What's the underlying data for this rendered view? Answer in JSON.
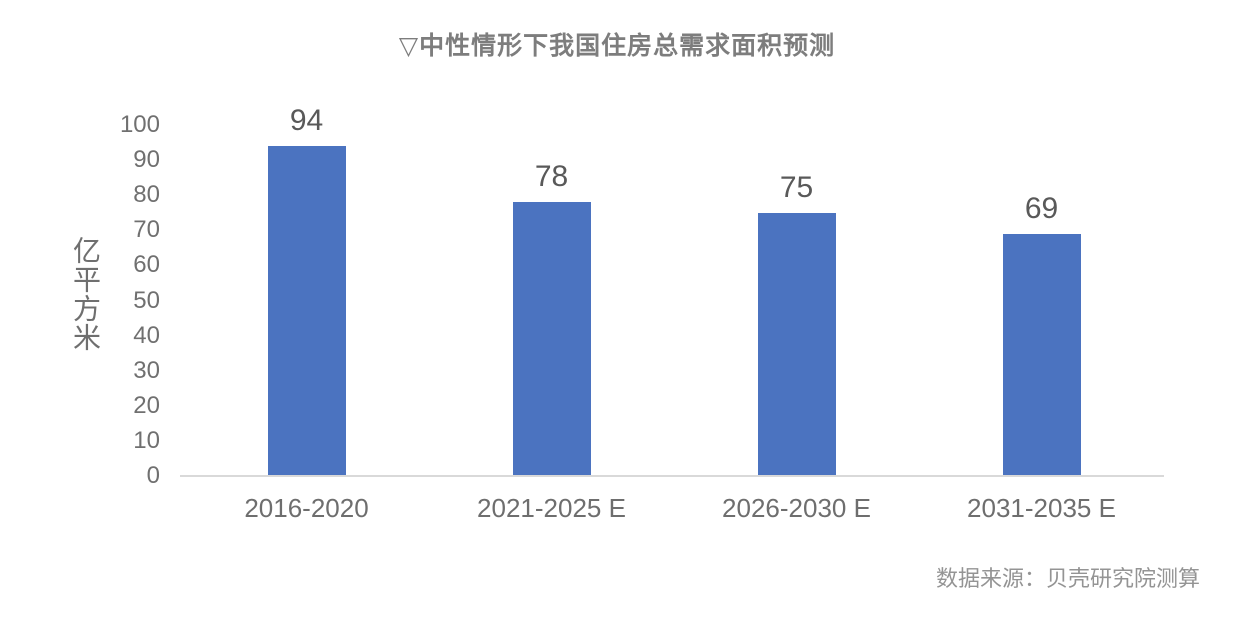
{
  "page": {
    "background_color": "#ffffff"
  },
  "chart_data": {
    "type": "bar",
    "title": "▽中性情形下我国住房总需求面积预测",
    "title_marker": "down-triangle",
    "categories": [
      "2016-2020",
      "2021-2025 E",
      "2026-2030 E",
      "2031-2035 E"
    ],
    "values": [
      94,
      78,
      75,
      69
    ],
    "xlabel": "",
    "ylabel": "亿平方米",
    "ylim": [
      0,
      100
    ],
    "yticks": [
      0,
      10,
      20,
      30,
      40,
      50,
      60,
      70,
      80,
      90,
      100
    ],
    "grid": false,
    "legend": "none",
    "data_labels_shown": true,
    "colors": {
      "bar": "#4b73c0",
      "title": "#7d7d7d",
      "data_label": "#595959",
      "axis_tick_label": "#707070",
      "category_label": "#6e6e6e",
      "axis_line": "#d9d9d9"
    }
  },
  "source": {
    "text": "数据来源：贝壳研究院测算",
    "color": "#949494"
  }
}
